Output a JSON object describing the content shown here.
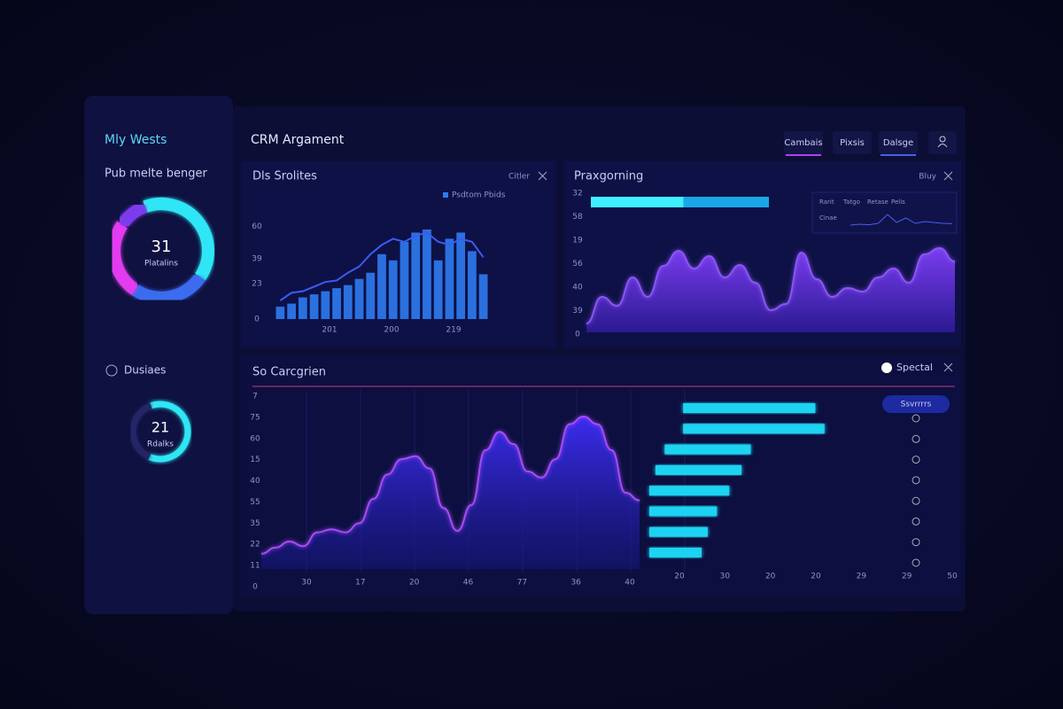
{
  "sidebar": {
    "title": "Mly Wests",
    "subtitle": "Pub melte benger",
    "section": "Dusiaes"
  },
  "header": {
    "title": "CRM Argament",
    "tabs": [
      "Cambais",
      "Pixsis",
      "Dalsge"
    ]
  },
  "chart_data": [
    {
      "type": "donut",
      "center_value": 31,
      "center_label": "Platalins",
      "values": [
        40,
        25,
        25,
        10
      ],
      "colors": [
        "#2ee6f5",
        "#3b6cf0",
        "#e23bf0",
        "#7c3aed"
      ]
    },
    {
      "type": "donut",
      "center_value": 21,
      "center_label": "Rdalks",
      "values": [
        62,
        38
      ],
      "colors": [
        "#2ee6f5",
        "#232766"
      ]
    },
    {
      "type": "bar",
      "title": "Dls Srolites",
      "action": "Citler",
      "legend": "Psdtom Pbids",
      "color": "#2f7bf0",
      "line_color": "#3a5cf5",
      "values": [
        8,
        10,
        14,
        16,
        18,
        20,
        22,
        26,
        30,
        42,
        38,
        50,
        56,
        58,
        38,
        52,
        56,
        44,
        29
      ],
      "line_values": [
        12,
        17,
        18,
        21,
        24,
        25,
        30,
        34,
        42,
        48,
        52,
        50,
        54,
        56,
        50,
        48,
        52,
        50,
        40
      ],
      "ylim": [
        0,
        66
      ],
      "yticks": [
        0,
        23,
        39,
        60
      ],
      "x_labels": [
        "201",
        "200",
        "219"
      ]
    },
    {
      "type": "area",
      "title": "Praxgorning",
      "action": "Bluy",
      "color": "#6d3bea",
      "y_labels": [
        "32",
        "58",
        "19",
        "56",
        "40",
        "39",
        "0"
      ],
      "values": [
        10,
        40,
        30,
        62,
        40,
        75,
        92,
        72,
        86,
        62,
        76,
        56,
        25,
        32,
        90,
        60,
        40,
        50,
        46,
        62,
        72,
        56,
        88,
        95,
        80
      ],
      "ylim": [
        0,
        100
      ],
      "progress": [
        52,
        48
      ],
      "inset": {
        "labels": [
          "Rarit",
          "Tatgo",
          "Retase",
          "Pelis"
        ],
        "sublabel": "Cinae",
        "values": [
          20,
          25,
          22,
          30,
          80,
          35,
          60,
          30,
          40,
          35,
          30,
          28
        ]
      }
    },
    {
      "type": "area",
      "title": "So Carcgrien",
      "color": "#2d2ff0",
      "y_labels": [
        "7",
        "75",
        "60",
        "15",
        "40",
        "55",
        "35",
        "22",
        "11",
        "0"
      ],
      "x_labels": [
        "30",
        "17",
        "20",
        "46",
        "77",
        "36",
        "40"
      ],
      "values": [
        10,
        14,
        18,
        15,
        24,
        26,
        24,
        30,
        46,
        62,
        72,
        74,
        66,
        40,
        25,
        42,
        78,
        90,
        82,
        64,
        60,
        72,
        95,
        100,
        95,
        78,
        50,
        45
      ],
      "ylim": [
        0,
        100
      ]
    },
    {
      "type": "range-bar",
      "button": "Ssvrrrrs",
      "action": "Spectal",
      "color": "#1fd3f2",
      "starts": [
        11,
        11,
        5,
        2,
        0,
        0,
        0,
        0
      ],
      "ends": [
        54,
        57,
        33,
        30,
        26,
        22,
        19,
        17
      ],
      "xlim": [
        0,
        100
      ],
      "x_labels": [
        "20",
        "30",
        "20",
        "20",
        "29",
        "29",
        "50"
      ]
    }
  ]
}
